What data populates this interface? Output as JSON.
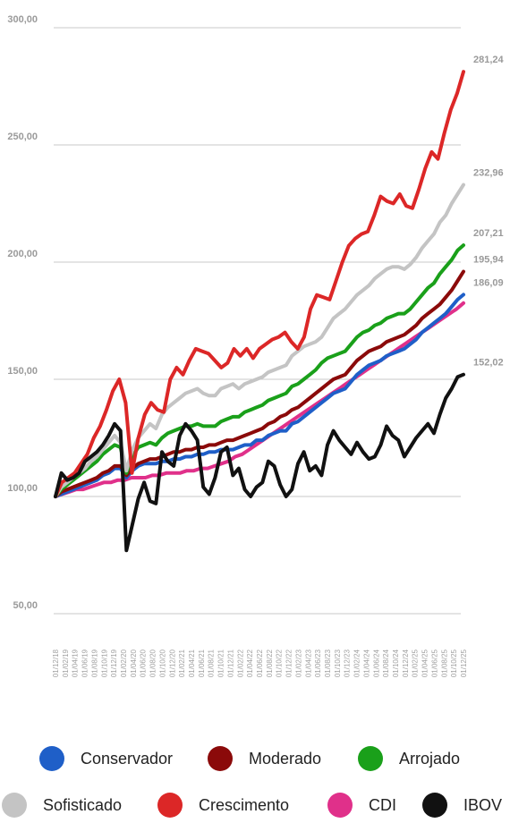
{
  "chart_data": {
    "type": "line",
    "title": "",
    "xlabel": "",
    "ylabel": "",
    "ylim": [
      50,
      300
    ],
    "grid": true,
    "legend_position": "bottom",
    "y_ticks": [
      "300,00",
      "250,00",
      "200,00",
      "150,00",
      "100,00",
      "50,00"
    ],
    "x_tick_labels": [
      "01/12/18",
      "01/02/19",
      "01/04/19",
      "01/06/19",
      "01/08/19",
      "01/10/19",
      "01/12/19",
      "01/02/20",
      "01/04/20",
      "01/06/20",
      "01/08/20",
      "01/10/20",
      "01/12/20",
      "01/02/21",
      "01/04/21",
      "01/06/21",
      "01/08/21",
      "01/10/21",
      "01/12/21",
      "01/02/22",
      "01/04/22",
      "01/06/22",
      "01/08/22",
      "01/10/22",
      "01/12/22",
      "01/02/23",
      "01/04/23",
      "01/06/23",
      "01/08/23",
      "01/10/23",
      "01/12/23",
      "01/02/24",
      "01/04/24",
      "01/06/24",
      "01/08/24",
      "01/10/24",
      "01/12/24",
      "01/02/25",
      "01/04/25",
      "01/06/25",
      "01/08/25",
      "01/10/25",
      "01/12/25"
    ],
    "series": [
      {
        "name": "Conservador",
        "color": "#1f5fc8",
        "end_label": "186,09",
        "values": [
          100,
          101,
          102,
          103,
          104,
          105,
          106,
          107,
          109,
          110,
          112,
          112,
          108,
          111,
          113,
          114,
          114,
          114,
          115,
          115,
          116,
          116,
          117,
          117,
          118,
          118,
          119,
          119,
          120,
          120,
          120,
          121,
          122,
          122,
          124,
          124,
          126,
          127,
          128,
          128,
          131,
          132,
          134,
          136,
          138,
          140,
          142,
          144,
          145,
          146,
          149,
          152,
          154,
          156,
          157,
          158,
          160,
          161,
          162,
          163,
          165,
          167,
          170,
          172,
          174,
          176,
          178,
          181,
          184,
          186.09
        ]
      },
      {
        "name": "Moderado",
        "color": "#8b0a0a",
        "end_label": "195,94",
        "values": [
          100,
          102,
          103,
          104,
          105,
          106,
          107,
          108,
          110,
          111,
          113,
          113,
          109,
          112,
          114,
          115,
          116,
          116,
          117,
          118,
          119,
          119,
          120,
          120,
          121,
          121,
          122,
          122,
          123,
          124,
          124,
          125,
          126,
          127,
          128,
          129,
          131,
          132,
          134,
          135,
          137,
          138,
          140,
          142,
          144,
          146,
          148,
          150,
          151,
          152,
          155,
          158,
          160,
          162,
          163,
          164,
          166,
          167,
          168,
          169,
          171,
          173,
          176,
          178,
          180,
          182,
          185,
          188,
          192,
          195.94
        ]
      },
      {
        "name": "Arrojado",
        "color": "#1aa01a",
        "end_label": "207,21",
        "values": [
          100,
          103,
          105,
          107,
          109,
          111,
          113,
          115,
          118,
          120,
          122,
          121,
          110,
          117,
          121,
          122,
          123,
          122,
          125,
          127,
          128,
          129,
          130,
          130,
          131,
          130,
          130,
          130,
          132,
          133,
          134,
          134,
          136,
          137,
          138,
          139,
          141,
          142,
          143,
          144,
          147,
          148,
          150,
          152,
          154,
          157,
          159,
          160,
          161,
          162,
          165,
          168,
          170,
          171,
          173,
          174,
          176,
          177,
          178,
          178,
          180,
          183,
          186,
          189,
          191,
          195,
          198,
          201,
          205,
          207.21
        ]
      },
      {
        "name": "Sofisticado",
        "color": "#c4c4c4",
        "end_label": "232,96",
        "values": [
          100,
          104,
          106,
          108,
          110,
          112,
          115,
          117,
          120,
          123,
          126,
          123,
          111,
          120,
          125,
          128,
          131,
          129,
          135,
          138,
          140,
          142,
          144,
          145,
          146,
          144,
          143,
          143,
          146,
          147,
          148,
          146,
          148,
          149,
          150,
          151,
          153,
          154,
          155,
          156,
          160,
          162,
          164,
          165,
          166,
          168,
          172,
          176,
          178,
          180,
          183,
          186,
          188,
          190,
          193,
          195,
          197,
          198,
          198,
          197,
          199,
          202,
          206,
          209,
          212,
          217,
          220,
          225,
          229,
          232.96
        ]
      },
      {
        "name": "Crescimento",
        "color": "#dc2727",
        "end_label": "281,24",
        "values": [
          100,
          106,
          108,
          110,
          114,
          118,
          125,
          130,
          137,
          145,
          150,
          140,
          110,
          125,
          135,
          140,
          137,
          136,
          150,
          155,
          152,
          158,
          163,
          162,
          161,
          158,
          155,
          157,
          163,
          160,
          163,
          159,
          163,
          165,
          167,
          168,
          170,
          166,
          163,
          168,
          180,
          186,
          185,
          184,
          192,
          200,
          207,
          210,
          212,
          213,
          220,
          228,
          226,
          225,
          229,
          224,
          223,
          231,
          240,
          247,
          244,
          255,
          265,
          272,
          281.24
        ]
      },
      {
        "name": "CDI",
        "color": "#e0308a",
        "end_label": "",
        "values": [
          100,
          101,
          102,
          103,
          103,
          104,
          105,
          106,
          106,
          107,
          107,
          108,
          108,
          108,
          109,
          109,
          110,
          110,
          110,
          111,
          111,
          112,
          112,
          113,
          114,
          115,
          117,
          118,
          120,
          122,
          124,
          126,
          128,
          130,
          132,
          134,
          136,
          138,
          140,
          142,
          144,
          146,
          148,
          150,
          152,
          154,
          156,
          158,
          160,
          162,
          164,
          166,
          168,
          170,
          172,
          174,
          176,
          178,
          180,
          182.5
        ]
      },
      {
        "name": "IBOV",
        "color": "#111111",
        "end_label": "152,02",
        "values": [
          100,
          110,
          107,
          108,
          110,
          115,
          117,
          119,
          122,
          126,
          131,
          128,
          77,
          88,
          99,
          106,
          98,
          97,
          119,
          115,
          113,
          126,
          131,
          128,
          124,
          104,
          101,
          108,
          119,
          121,
          109,
          112,
          103,
          100,
          104,
          106,
          115,
          113,
          105,
          100,
          103,
          114,
          119,
          111,
          113,
          109,
          122,
          128,
          124,
          121,
          118,
          123,
          119,
          116,
          117,
          122,
          130,
          126,
          124,
          117,
          121,
          125,
          128,
          131,
          127,
          135,
          142,
          146,
          151,
          152.02
        ]
      }
    ]
  },
  "legend": {
    "row1": [
      {
        "label": "Conservador",
        "color": "#1f5fc8"
      },
      {
        "label": "Moderado",
        "color": "#8b0a0a"
      },
      {
        "label": "Arrojado",
        "color": "#1aa01a"
      }
    ],
    "row2": [
      {
        "label": "Sofisticado",
        "color": "#c4c4c4"
      },
      {
        "label": "Crescimento",
        "color": "#dc2727"
      },
      {
        "label": "CDI",
        "color": "#e0308a"
      },
      {
        "label": "IBOV",
        "color": "#111111"
      }
    ]
  }
}
